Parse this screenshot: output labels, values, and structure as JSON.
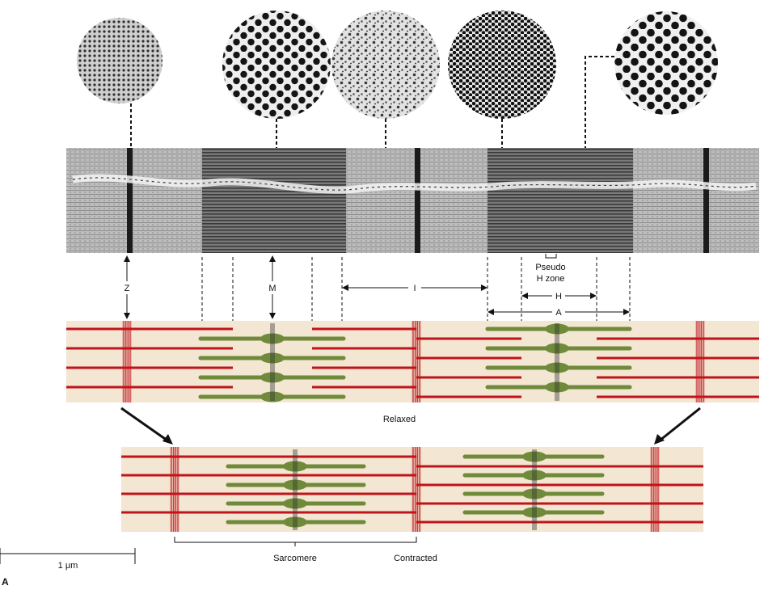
{
  "labels": {
    "z": "Z",
    "m": "M",
    "i": "I",
    "h": "H",
    "a": "A",
    "pseudo_h_line1": "Pseudo",
    "pseudo_h_line2": "H zone",
    "relaxed": "Relaxed",
    "sarcomere": "Sarcomere",
    "contracted": "Contracted",
    "scale_bar": "1 μm",
    "panel": "A"
  },
  "colors": {
    "background_band": "#f3e6d2",
    "thin_filament": "#c0141c",
    "thick_filament": "#6f8a3a",
    "micrograph_dark": "#2a2a2a",
    "micrograph_light": "#b8b8b8"
  },
  "cross_sections": [
    {
      "name": "z-disc-section",
      "pattern": "fine-lattice"
    },
    {
      "name": "m-line-section",
      "pattern": "hexagonal-thick"
    },
    {
      "name": "i-band-section",
      "pattern": "mixed-sparse"
    },
    {
      "name": "a-band-section",
      "pattern": "dense-hexagonal"
    },
    {
      "name": "h-zone-section",
      "pattern": "thick-only"
    }
  ]
}
